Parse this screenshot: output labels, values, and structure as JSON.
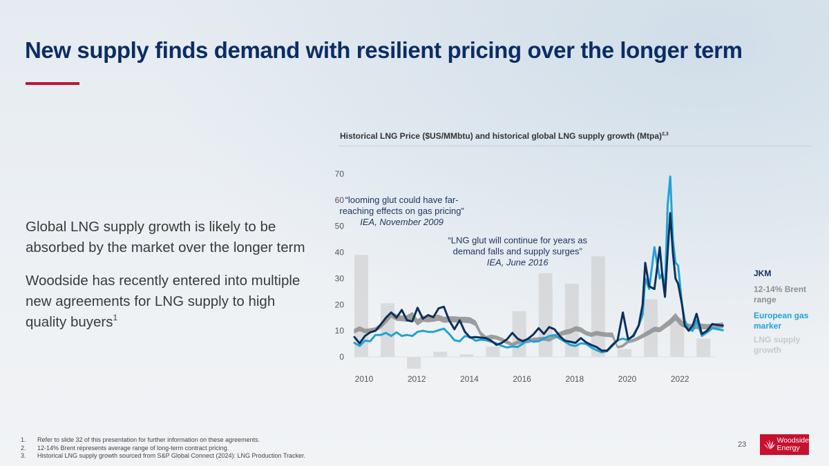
{
  "slide": {
    "title": "New supply finds demand with resilient pricing over the longer term",
    "accent_color": "#c8102e",
    "title_color": "#0b2d67",
    "paragraphs": [
      {
        "text": "Global LNG supply growth is likely to be absorbed by the market over the longer term",
        "sup": ""
      },
      {
        "text": "Woodside has recently entered into multiple new agreements for LNG supply to high quality buyers",
        "sup": "1"
      }
    ],
    "page_number": "23",
    "logo": {
      "line1": "Woodside",
      "line2": "Energy",
      "icon": "woodside-logo-icon"
    },
    "footnotes": [
      {
        "num": "1.",
        "text": "Refer to slide 32 of this presentation for further information on these agreements."
      },
      {
        "num": "2.",
        "text": "12-14% Brent represents average range of long-term contract pricing."
      },
      {
        "num": "3.",
        "text": "Historical LNG supply growth sourced from S&P Global Connect (2024): LNG Production Tracker."
      }
    ]
  },
  "chart_data": {
    "type": "line",
    "title": "Historical LNG Price ($US/MMbtu) and historical global LNG supply growth (Mtpa)",
    "title_sup": "2,3",
    "xlabel": "",
    "ylabel": "",
    "ylim": [
      0,
      70
    ],
    "xlim": [
      2010,
      2024
    ],
    "y_ticks": [
      0,
      10,
      20,
      30,
      40,
      50,
      60,
      70
    ],
    "x_ticks": [
      "2010",
      "2012",
      "2014",
      "2016",
      "2018",
      "2020",
      "2022"
    ],
    "x_tick_values": [
      2010,
      2012,
      2014,
      2016,
      2018,
      2020,
      2022
    ],
    "grid": false,
    "legend_position": "right",
    "legend": [
      {
        "name": "JKM",
        "color": "#0d2f5a"
      },
      {
        "name": "12-14% Brent range",
        "color": "#8f8f8f"
      },
      {
        "name": "European gas marker",
        "color": "#1ea3dc"
      },
      {
        "name": "LNG supply growth",
        "color": "#c8c8c8"
      }
    ],
    "annotations": [
      {
        "lines": [
          "“looming glut could have far-",
          "reaching effects on gas pricing”"
        ],
        "source": "IEA, November 2009",
        "x": 2011.8,
        "y": 60
      },
      {
        "lines": [
          "“LNG glut will continue for years as",
          "demand falls and supply surges”"
        ],
        "source": "IEA, June 2016",
        "x": 2016.2,
        "y": 44.5
      }
    ],
    "bars": {
      "name": "LNG supply growth",
      "unit": "Mtpa",
      "categories": [
        "2010",
        "2011",
        "2012",
        "2013",
        "2014",
        "2015",
        "2016",
        "2017",
        "2018",
        "2019",
        "2020",
        "2021",
        "2022",
        "2023"
      ],
      "values": [
        39,
        20.5,
        -4.5,
        2,
        1,
        4,
        17.5,
        32,
        28,
        38.5,
        3,
        22,
        15,
        7
      ]
    },
    "series": [
      {
        "name": "12-14% Brent range",
        "kind": "band",
        "x": [
          2010.0,
          2010.2,
          2010.4,
          2010.6,
          2010.8,
          2011.0,
          2011.2,
          2011.4,
          2011.6,
          2011.8,
          2012.0,
          2012.2,
          2012.4,
          2012.6,
          2012.8,
          2013.0,
          2013.2,
          2013.4,
          2013.6,
          2013.8,
          2014.0,
          2014.2,
          2014.4,
          2014.6,
          2014.8,
          2015.0,
          2015.2,
          2015.4,
          2015.6,
          2015.8,
          2016.0,
          2016.2,
          2016.4,
          2016.6,
          2016.8,
          2017.0,
          2017.2,
          2017.4,
          2017.6,
          2017.8,
          2018.0,
          2018.2,
          2018.4,
          2018.6,
          2018.8,
          2019.0,
          2019.2,
          2019.4,
          2019.6,
          2019.8,
          2020.0,
          2020.2,
          2020.4,
          2020.6,
          2020.8,
          2021.0,
          2021.2,
          2021.4,
          2021.6,
          2021.8,
          2022.0,
          2022.2,
          2022.4,
          2022.6,
          2022.8,
          2023.0,
          2023.2,
          2023.4,
          2023.6,
          2023.8,
          2024.0
        ],
        "low": [
          9.2,
          10.0,
          9.2,
          9.4,
          9.8,
          11.0,
          13.0,
          15.2,
          14.0,
          13.8,
          13.6,
          14.6,
          12.2,
          13.6,
          13.4,
          13.6,
          14.0,
          13.2,
          13.4,
          13.4,
          13.2,
          13.2,
          13.0,
          12.0,
          8.2,
          6.6,
          7.0,
          6.8,
          6.0,
          5.0,
          4.2,
          5.0,
          5.4,
          5.4,
          6.0,
          6.2,
          6.4,
          6.0,
          7.0,
          8.0,
          8.6,
          9.0,
          10.0,
          9.6,
          8.4,
          7.8,
          8.4,
          8.0,
          7.8,
          7.6,
          3.4,
          3.8,
          5.4,
          5.8,
          6.6,
          7.6,
          8.6,
          9.8,
          9.6,
          11.0,
          12.4,
          14.2,
          12.0,
          11.0,
          10.6,
          10.8,
          10.8,
          10.6,
          10.8,
          11.0,
          11.2
        ],
        "high": [
          10.6,
          11.6,
          10.6,
          10.8,
          11.2,
          12.6,
          14.8,
          17.0,
          16.2,
          15.6,
          15.8,
          17.0,
          14.2,
          15.6,
          15.4,
          15.8,
          16.0,
          15.2,
          15.4,
          15.4,
          15.2,
          15.2,
          15.0,
          13.8,
          9.6,
          7.8,
          8.4,
          8.0,
          7.2,
          6.2,
          5.2,
          6.2,
          6.6,
          6.6,
          7.2,
          7.4,
          7.6,
          7.2,
          8.4,
          9.4,
          10.2,
          10.6,
          11.6,
          11.2,
          9.8,
          9.2,
          9.8,
          9.4,
          9.2,
          9.2,
          4.0,
          4.6,
          6.4,
          6.8,
          7.8,
          9.0,
          10.2,
          11.4,
          11.2,
          12.8,
          14.4,
          16.6,
          14.0,
          12.8,
          12.4,
          12.6,
          12.6,
          12.4,
          12.6,
          12.8,
          13.0
        ]
      },
      {
        "name": "JKM",
        "kind": "line",
        "x": [
          2010.0,
          2010.2,
          2010.4,
          2010.6,
          2010.8,
          2011.0,
          2011.2,
          2011.4,
          2011.6,
          2011.8,
          2012.0,
          2012.2,
          2012.4,
          2012.6,
          2012.8,
          2013.0,
          2013.2,
          2013.4,
          2013.6,
          2013.8,
          2014.0,
          2014.2,
          2014.4,
          2014.6,
          2014.8,
          2015.0,
          2015.2,
          2015.4,
          2015.6,
          2015.8,
          2016.0,
          2016.2,
          2016.4,
          2016.6,
          2016.8,
          2017.0,
          2017.2,
          2017.4,
          2017.6,
          2017.8,
          2018.0,
          2018.2,
          2018.4,
          2018.6,
          2018.8,
          2019.0,
          2019.2,
          2019.4,
          2019.6,
          2019.8,
          2020.0,
          2020.2,
          2020.4,
          2020.6,
          2020.8,
          2020.95,
          2021.05,
          2021.2,
          2021.4,
          2021.6,
          2021.7,
          2021.8,
          2021.9,
          2022.0,
          2022.1,
          2022.2,
          2022.3,
          2022.45,
          2022.55,
          2022.7,
          2022.85,
          2023.0,
          2023.2,
          2023.4,
          2023.6,
          2023.8,
          2024.0
        ],
        "y": [
          7.6,
          5.2,
          8.0,
          9.4,
          10.0,
          12.4,
          15.0,
          17.0,
          15.0,
          18.0,
          14.0,
          13.6,
          18.8,
          14.6,
          16.0,
          15.2,
          18.6,
          19.2,
          14.0,
          10.6,
          14.0,
          9.6,
          7.4,
          7.6,
          7.4,
          7.2,
          6.2,
          4.6,
          5.4,
          6.8,
          9.2,
          7.0,
          6.0,
          7.0,
          8.6,
          11.0,
          8.8,
          11.4,
          10.6,
          8.0,
          6.2,
          5.8,
          5.4,
          7.2,
          5.6,
          4.6,
          3.8,
          2.4,
          2.4,
          4.6,
          6.4,
          17.0,
          6.8,
          8.0,
          12.0,
          20.0,
          36.0,
          27.0,
          26.0,
          42.0,
          31.0,
          23.0,
          40.0,
          55.0,
          40.0,
          30.0,
          28.0,
          20.0,
          12.0,
          10.0,
          12.0,
          16.5,
          8.8,
          10.0,
          12.6,
          12.2,
          12.0
        ]
      },
      {
        "name": "European gas marker",
        "kind": "line",
        "x": [
          2010.0,
          2010.2,
          2010.4,
          2010.6,
          2010.8,
          2011.0,
          2011.2,
          2011.4,
          2011.6,
          2011.8,
          2012.0,
          2012.2,
          2012.4,
          2012.6,
          2012.8,
          2013.0,
          2013.2,
          2013.4,
          2013.6,
          2013.8,
          2014.0,
          2014.2,
          2014.4,
          2014.6,
          2014.8,
          2015.0,
          2015.2,
          2015.4,
          2015.6,
          2015.8,
          2016.0,
          2016.2,
          2016.4,
          2016.6,
          2016.8,
          2017.0,
          2017.2,
          2017.4,
          2017.6,
          2017.8,
          2018.0,
          2018.2,
          2018.4,
          2018.6,
          2018.8,
          2019.0,
          2019.2,
          2019.4,
          2019.6,
          2019.8,
          2020.0,
          2020.2,
          2020.4,
          2020.6,
          2020.8,
          2020.95,
          2021.05,
          2021.2,
          2021.4,
          2021.6,
          2021.7,
          2021.8,
          2021.9,
          2022.0,
          2022.1,
          2022.2,
          2022.3,
          2022.45,
          2022.55,
          2022.7,
          2022.85,
          2023.0,
          2023.2,
          2023.4,
          2023.6,
          2023.8,
          2024.0
        ],
        "y": [
          5.4,
          4.2,
          6.2,
          6.0,
          8.4,
          8.4,
          9.2,
          8.0,
          9.4,
          8.0,
          8.4,
          8.0,
          9.6,
          10.0,
          9.6,
          9.6,
          10.2,
          10.8,
          8.8,
          6.4,
          6.0,
          8.0,
          7.6,
          6.2,
          6.6,
          6.4,
          5.8,
          5.2,
          4.2,
          3.6,
          4.0,
          3.8,
          5.0,
          6.6,
          5.8,
          6.0,
          7.0,
          8.0,
          8.4,
          7.0,
          5.8,
          4.6,
          4.2,
          5.2,
          5.0,
          3.6,
          2.6,
          1.8,
          2.2,
          4.2,
          6.4,
          7.0,
          6.4,
          8.4,
          12.0,
          16.0,
          30.0,
          26.0,
          42.0,
          30.0,
          32.0,
          25.0,
          58.0,
          69.0,
          45.0,
          36.0,
          35.0,
          20.0,
          14.0,
          10.5,
          10.0,
          14.0,
          8.0,
          9.4,
          11.0,
          10.6,
          10.2
        ]
      }
    ]
  }
}
